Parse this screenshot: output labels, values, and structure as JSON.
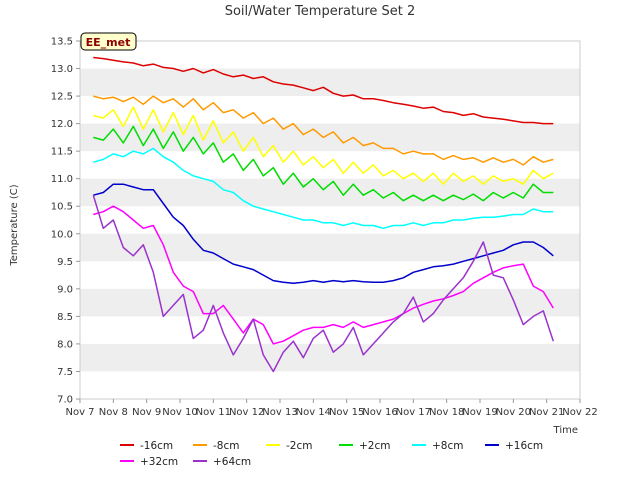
{
  "chart_data": {
    "type": "line",
    "title": "Soil/Water Temperature Set 2",
    "xlabel": "Time",
    "ylabel": "Temperature (C)",
    "badge": "EE_met",
    "ylim": [
      7.0,
      13.5
    ],
    "yticks": [
      "7.0",
      "7.5",
      "8.0",
      "8.5",
      "9.0",
      "9.5",
      "10.0",
      "10.5",
      "11.0",
      "11.5",
      "12.0",
      "12.5",
      "13.0",
      "13.5"
    ],
    "xlim": [
      7,
      22
    ],
    "xticks": [
      "Nov 7",
      "Nov 8",
      "Nov 9",
      "Nov 10",
      "Nov 11",
      "Nov 12",
      "Nov 13",
      "Nov 14",
      "Nov 15",
      "Nov 16",
      "Nov 17",
      "Nov 18",
      "Nov 19",
      "Nov 20",
      "Nov 21",
      "Nov 22"
    ],
    "x": [
      7.4,
      7.7,
      8.0,
      8.3,
      8.6,
      8.9,
      9.2,
      9.5,
      9.8,
      10.1,
      10.4,
      10.7,
      11.0,
      11.3,
      11.6,
      11.9,
      12.2,
      12.5,
      12.8,
      13.1,
      13.4,
      13.7,
      14.0,
      14.3,
      14.6,
      14.9,
      15.2,
      15.5,
      15.8,
      16.1,
      16.4,
      16.7,
      17.0,
      17.3,
      17.6,
      17.9,
      18.2,
      18.5,
      18.8,
      19.1,
      19.4,
      19.7,
      20.0,
      20.3,
      20.6,
      20.9,
      21.2
    ],
    "series": [
      {
        "name": "-16cm",
        "color": "#dd0000",
        "values": [
          13.2,
          13.18,
          13.15,
          13.12,
          13.1,
          13.05,
          13.08,
          13.02,
          13.0,
          12.95,
          13.0,
          12.92,
          12.98,
          12.9,
          12.85,
          12.88,
          12.82,
          12.85,
          12.76,
          12.72,
          12.7,
          12.65,
          12.6,
          12.66,
          12.55,
          12.5,
          12.52,
          12.45,
          12.45,
          12.42,
          12.38,
          12.35,
          12.32,
          12.28,
          12.3,
          12.22,
          12.2,
          12.15,
          12.18,
          12.12,
          12.1,
          12.08,
          12.05,
          12.02,
          12.02,
          12.0,
          12.0
        ]
      },
      {
        "name": "-8cm",
        "color": "#ff9900",
        "values": [
          12.5,
          12.45,
          12.48,
          12.4,
          12.48,
          12.35,
          12.5,
          12.38,
          12.45,
          12.3,
          12.45,
          12.25,
          12.38,
          12.2,
          12.25,
          12.1,
          12.2,
          12.0,
          12.1,
          11.9,
          12.0,
          11.8,
          11.9,
          11.75,
          11.85,
          11.65,
          11.75,
          11.6,
          11.65,
          11.55,
          11.55,
          11.45,
          11.5,
          11.45,
          11.45,
          11.35,
          11.42,
          11.35,
          11.38,
          11.3,
          11.38,
          11.3,
          11.35,
          11.25,
          11.4,
          11.3,
          11.35
        ]
      },
      {
        "name": "-2cm",
        "color": "#ffff00",
        "values": [
          12.15,
          12.1,
          12.25,
          11.95,
          12.3,
          11.9,
          12.25,
          11.85,
          12.2,
          11.8,
          12.15,
          11.7,
          12.05,
          11.65,
          11.85,
          11.5,
          11.75,
          11.4,
          11.6,
          11.3,
          11.5,
          11.25,
          11.4,
          11.2,
          11.35,
          11.1,
          11.3,
          11.1,
          11.25,
          11.05,
          11.15,
          11.0,
          11.1,
          10.95,
          11.1,
          10.9,
          11.1,
          10.95,
          11.05,
          10.9,
          11.05,
          10.95,
          11.0,
          10.9,
          11.15,
          11.0,
          11.1
        ]
      },
      {
        "name": "+2cm",
        "color": "#00dd00",
        "values": [
          11.75,
          11.7,
          11.9,
          11.65,
          11.95,
          11.6,
          11.9,
          11.55,
          11.85,
          11.5,
          11.75,
          11.45,
          11.65,
          11.3,
          11.45,
          11.15,
          11.35,
          11.05,
          11.2,
          10.9,
          11.1,
          10.85,
          11.0,
          10.8,
          10.95,
          10.7,
          10.9,
          10.7,
          10.8,
          10.65,
          10.75,
          10.6,
          10.7,
          10.6,
          10.7,
          10.6,
          10.7,
          10.62,
          10.72,
          10.6,
          10.75,
          10.65,
          10.75,
          10.65,
          10.9,
          10.75,
          10.75
        ]
      },
      {
        "name": "+8cm",
        "color": "#00ffff",
        "values": [
          11.3,
          11.35,
          11.45,
          11.4,
          11.5,
          11.45,
          11.55,
          11.4,
          11.3,
          11.15,
          11.05,
          11.0,
          10.95,
          10.8,
          10.75,
          10.6,
          10.5,
          10.45,
          10.4,
          10.35,
          10.3,
          10.25,
          10.25,
          10.2,
          10.2,
          10.15,
          10.2,
          10.15,
          10.15,
          10.1,
          10.15,
          10.15,
          10.2,
          10.15,
          10.2,
          10.2,
          10.25,
          10.25,
          10.28,
          10.3,
          10.3,
          10.32,
          10.35,
          10.35,
          10.45,
          10.4,
          10.4
        ]
      },
      {
        "name": "+16cm",
        "color": "#0000cc",
        "values": [
          10.7,
          10.75,
          10.9,
          10.9,
          10.85,
          10.8,
          10.8,
          10.55,
          10.3,
          10.15,
          9.9,
          9.7,
          9.65,
          9.55,
          9.45,
          9.4,
          9.35,
          9.25,
          9.15,
          9.12,
          9.1,
          9.12,
          9.15,
          9.12,
          9.15,
          9.13,
          9.15,
          9.13,
          9.12,
          9.12,
          9.15,
          9.2,
          9.3,
          9.35,
          9.4,
          9.42,
          9.45,
          9.5,
          9.55,
          9.6,
          9.65,
          9.7,
          9.8,
          9.85,
          9.85,
          9.75,
          9.6
        ]
      },
      {
        "name": "+32cm",
        "color": "#ff00ff",
        "values": [
          10.35,
          10.4,
          10.5,
          10.4,
          10.25,
          10.1,
          10.15,
          9.8,
          9.3,
          9.05,
          8.95,
          8.55,
          8.55,
          8.7,
          8.45,
          8.2,
          8.45,
          8.35,
          8.0,
          8.05,
          8.15,
          8.25,
          8.3,
          8.3,
          8.35,
          8.3,
          8.4,
          8.3,
          8.35,
          8.4,
          8.45,
          8.55,
          8.65,
          8.72,
          8.78,
          8.82,
          8.88,
          8.95,
          9.1,
          9.2,
          9.3,
          9.38,
          9.42,
          9.45,
          9.05,
          8.95,
          8.65
        ]
      },
      {
        "name": "+64cm",
        "color": "#9933cc",
        "values": [
          10.7,
          10.1,
          10.25,
          9.75,
          9.6,
          9.8,
          9.3,
          8.5,
          8.7,
          8.9,
          8.1,
          8.25,
          8.7,
          8.2,
          7.8,
          8.1,
          8.45,
          7.8,
          7.5,
          7.85,
          8.05,
          7.75,
          8.1,
          8.25,
          7.85,
          8.0,
          8.3,
          7.8,
          8.0,
          8.2,
          8.4,
          8.55,
          8.85,
          8.4,
          8.55,
          8.8,
          9.0,
          9.2,
          9.5,
          9.85,
          9.25,
          9.2,
          8.8,
          8.35,
          8.5,
          8.6,
          8.05
        ]
      }
    ],
    "legend_position": "bottom",
    "grid": "alternating horizontal bands"
  }
}
